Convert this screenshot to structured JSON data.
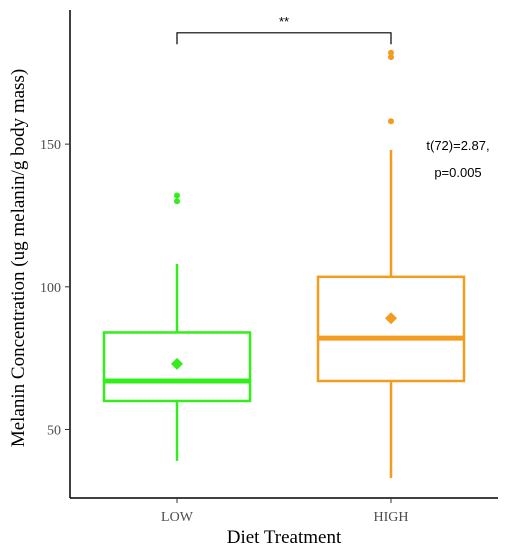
{
  "chart_data": {
    "type": "box",
    "title": "",
    "xlabel": "Diet Treatment",
    "ylabel": "Melanin Concentration (ug melanin/g body mass)",
    "ylim": [
      26,
      197
    ],
    "yticks": [
      50,
      100,
      150
    ],
    "grid": false,
    "legend": "none",
    "categories": [
      "LOW",
      "HIGH"
    ],
    "series": [
      {
        "category": "LOW",
        "color": "#33ee1a",
        "whisker_low": 39,
        "q1": 60,
        "median": 67,
        "q3": 84,
        "whisker_high": 108,
        "mean": 73,
        "outliers": [
          130,
          132
        ]
      },
      {
        "category": "HIGH",
        "color": "#f49c1f",
        "whisker_low": 33,
        "q1": 67,
        "median": 82,
        "q3": 103.5,
        "whisker_high": 148,
        "mean": 89,
        "outliers": [
          158,
          180.5,
          182
        ]
      }
    ],
    "significance": {
      "label": "**",
      "between": [
        "LOW",
        "HIGH"
      ],
      "y": 189,
      "tip": 185
    },
    "annotation": {
      "line1": "t(72)=2.87,",
      "line2": "p=0.005"
    }
  }
}
